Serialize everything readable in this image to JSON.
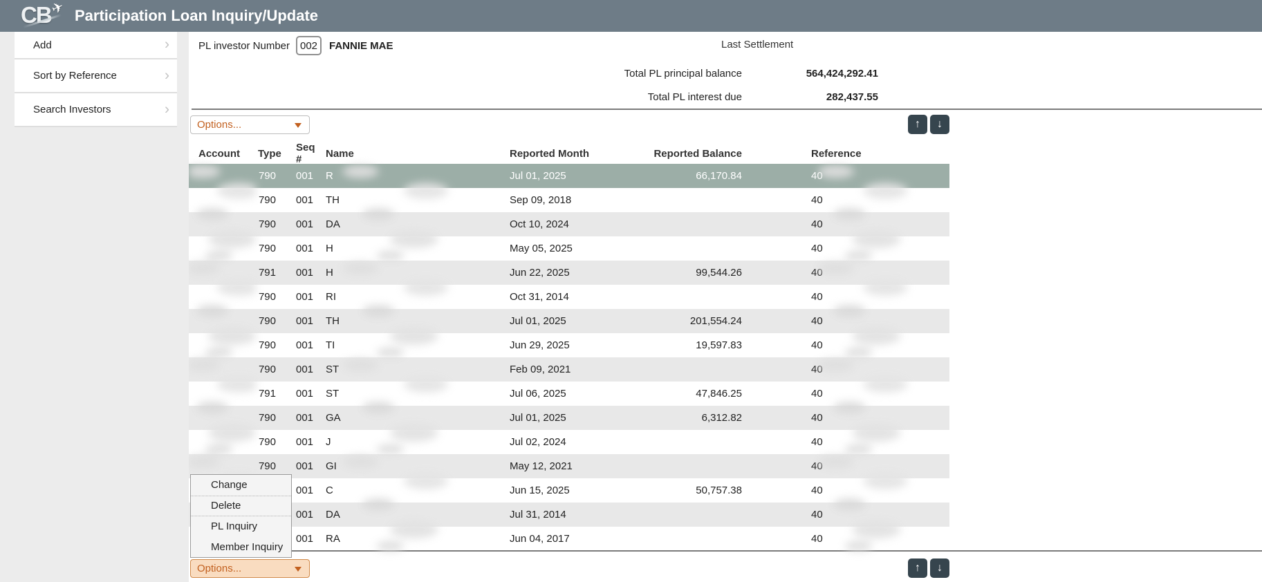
{
  "header": {
    "logo_text": "CB",
    "title": "Participation Loan Inquiry/Update"
  },
  "sidebar": {
    "items": [
      {
        "label": "Add"
      },
      {
        "label": "Sort by Reference"
      },
      {
        "label": "Search Investors"
      }
    ]
  },
  "investor": {
    "label": "PL investor Number",
    "number": "002",
    "name": "FANNIE MAE"
  },
  "settlement": {
    "section_label": "Last Settlement",
    "rows": [
      {
        "label": "Total PL principal balance",
        "value": "564,424,292.41"
      },
      {
        "label": "Total PL interest due",
        "value": "282,437.55"
      }
    ]
  },
  "options_top": {
    "label": "Options..."
  },
  "options_bottom": {
    "label": "Options..."
  },
  "pager": {
    "up": "↑",
    "down": "↓"
  },
  "table": {
    "columns": [
      "Account",
      "Type",
      "Seq #",
      "Name",
      "Reported Month",
      "Reported Balance",
      "Reference"
    ],
    "rows": [
      {
        "selected": true,
        "account": "",
        "type": "790",
        "seq": "001",
        "name_prefix": "R",
        "month": "Jul 01, 2025",
        "balance": "66,170.84",
        "ref_prefix": "40"
      },
      {
        "selected": false,
        "account": "",
        "type": "790",
        "seq": "001",
        "name_prefix": "TH",
        "month": "Sep 09, 2018",
        "balance": "",
        "ref_prefix": "40"
      },
      {
        "selected": false,
        "account": "",
        "type": "790",
        "seq": "001",
        "name_prefix": "DA",
        "month": "Oct 10, 2024",
        "balance": "",
        "ref_prefix": "40"
      },
      {
        "selected": false,
        "account": "",
        "type": "790",
        "seq": "001",
        "name_prefix": "H",
        "month": "May 05, 2025",
        "balance": "",
        "ref_prefix": "40"
      },
      {
        "selected": false,
        "account": "",
        "type": "791",
        "seq": "001",
        "name_prefix": "H",
        "month": "Jun 22, 2025",
        "balance": "99,544.26",
        "ref_prefix": "40"
      },
      {
        "selected": false,
        "account": "",
        "type": "790",
        "seq": "001",
        "name_prefix": "RI",
        "month": "Oct 31, 2014",
        "balance": "",
        "ref_prefix": "40"
      },
      {
        "selected": false,
        "account": "",
        "type": "790",
        "seq": "001",
        "name_prefix": "TH",
        "month": "Jul 01, 2025",
        "balance": "201,554.24",
        "ref_prefix": "40"
      },
      {
        "selected": false,
        "account": "",
        "type": "790",
        "seq": "001",
        "name_prefix": "TI",
        "month": "Jun 29, 2025",
        "balance": "19,597.83",
        "ref_prefix": "40"
      },
      {
        "selected": false,
        "account": "",
        "type": "790",
        "seq": "001",
        "name_prefix": "ST",
        "month": "Feb 09, 2021",
        "balance": "",
        "ref_prefix": "40"
      },
      {
        "selected": false,
        "account": "",
        "type": "791",
        "seq": "001",
        "name_prefix": "ST",
        "month": "Jul 06, 2025",
        "balance": "47,846.25",
        "ref_prefix": "40"
      },
      {
        "selected": false,
        "account": "",
        "type": "790",
        "seq": "001",
        "name_prefix": "GA",
        "month": "Jul 01, 2025",
        "balance": "6,312.82",
        "ref_prefix": "40"
      },
      {
        "selected": false,
        "account": "",
        "type": "790",
        "seq": "001",
        "name_prefix": "J",
        "month": "Jul 02, 2024",
        "balance": "",
        "ref_prefix": "40"
      },
      {
        "selected": false,
        "account": "",
        "type": "790",
        "seq": "001",
        "name_prefix": "GI",
        "month": "May 12, 2021",
        "balance": "",
        "ref_prefix": "40"
      },
      {
        "selected": false,
        "account": "",
        "type": "",
        "seq": "001",
        "name_prefix": "C",
        "month": "Jun 15, 2025",
        "balance": "50,757.38",
        "ref_prefix": "40"
      },
      {
        "selected": false,
        "account": "",
        "type": "",
        "seq": "001",
        "name_prefix": "DA",
        "month": "Jul 31, 2014",
        "balance": "",
        "ref_prefix": "40"
      },
      {
        "selected": false,
        "account": "",
        "type": "",
        "seq": "001",
        "name_prefix": "RA",
        "month": "Jun 04, 2017",
        "balance": "",
        "ref_prefix": "40"
      }
    ]
  },
  "context_menu": {
    "items": [
      {
        "label": "Change",
        "focused": false
      },
      {
        "label": "Delete",
        "focused": true
      },
      {
        "label": "PL Inquiry",
        "focused": false
      },
      {
        "label": "Member Inquiry",
        "focused": false
      }
    ]
  },
  "colors": {
    "header_bg": "#6e7c87",
    "selected_row": "#9caea7",
    "alt_row": "#e8e8e8",
    "accent_orange": "#c2601f",
    "options_focus_bg": "#f9dcc0",
    "pager_button": "#36454e"
  }
}
